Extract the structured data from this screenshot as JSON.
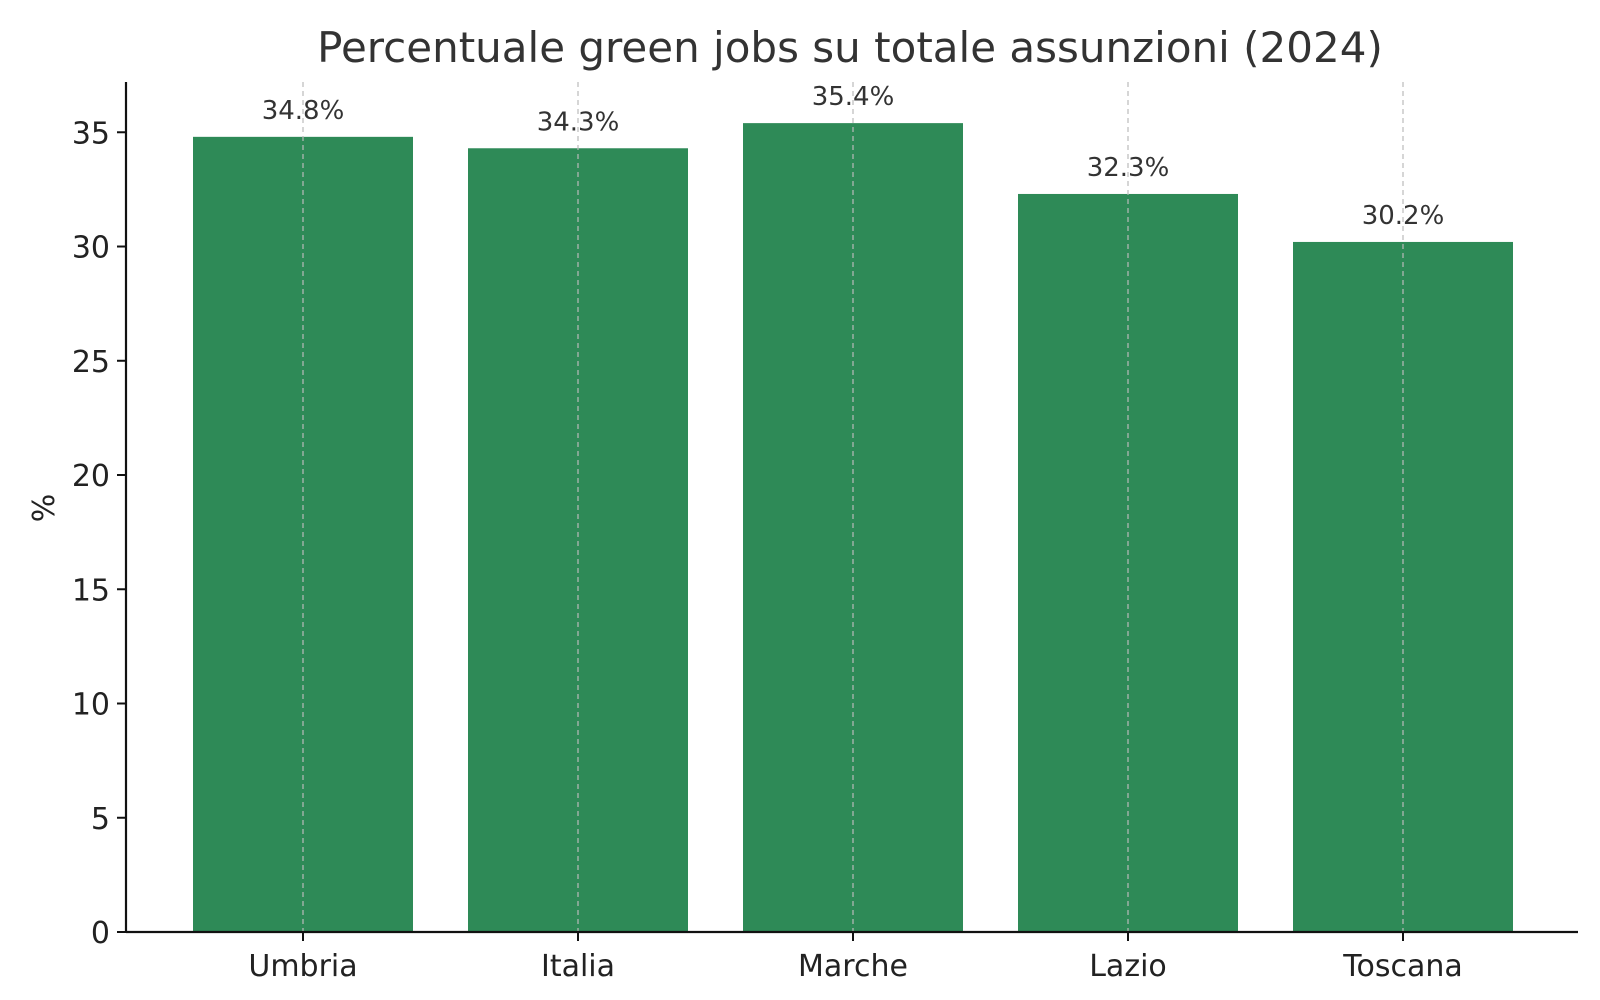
{
  "chart_data": {
    "type": "bar",
    "title": "Percentuale green jobs su totale assunzioni (2024)",
    "xlabel": "",
    "ylabel": "%",
    "categories": [
      "Umbria",
      "Italia",
      "Marche",
      "Lazio",
      "Toscana"
    ],
    "values": [
      34.8,
      34.3,
      35.4,
      32.3,
      30.2
    ],
    "data_labels": [
      "34.8%",
      "34.3%",
      "35.4%",
      "32.3%",
      "30.2%"
    ],
    "ylim": [
      0,
      37.2
    ],
    "yticks": [
      0,
      5,
      10,
      15,
      20,
      25,
      30,
      35
    ],
    "ytick_labels": [
      "0",
      "5",
      "10",
      "15",
      "20",
      "25",
      "30",
      "35"
    ],
    "grid": "x",
    "bar_color": "#2e8a57",
    "grid_color": "#bbbbbb",
    "axis_color": "#111111"
  }
}
